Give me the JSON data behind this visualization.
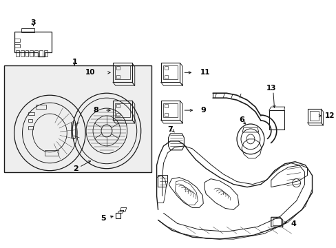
{
  "bg_color": "#ffffff",
  "fig_width": 4.89,
  "fig_height": 3.6,
  "dpi": 100,
  "line_color": "#1a1a1a",
  "text_color": "#000000",
  "gray_fill": "#d8d8d8",
  "light_gray": "#eeeeee"
}
